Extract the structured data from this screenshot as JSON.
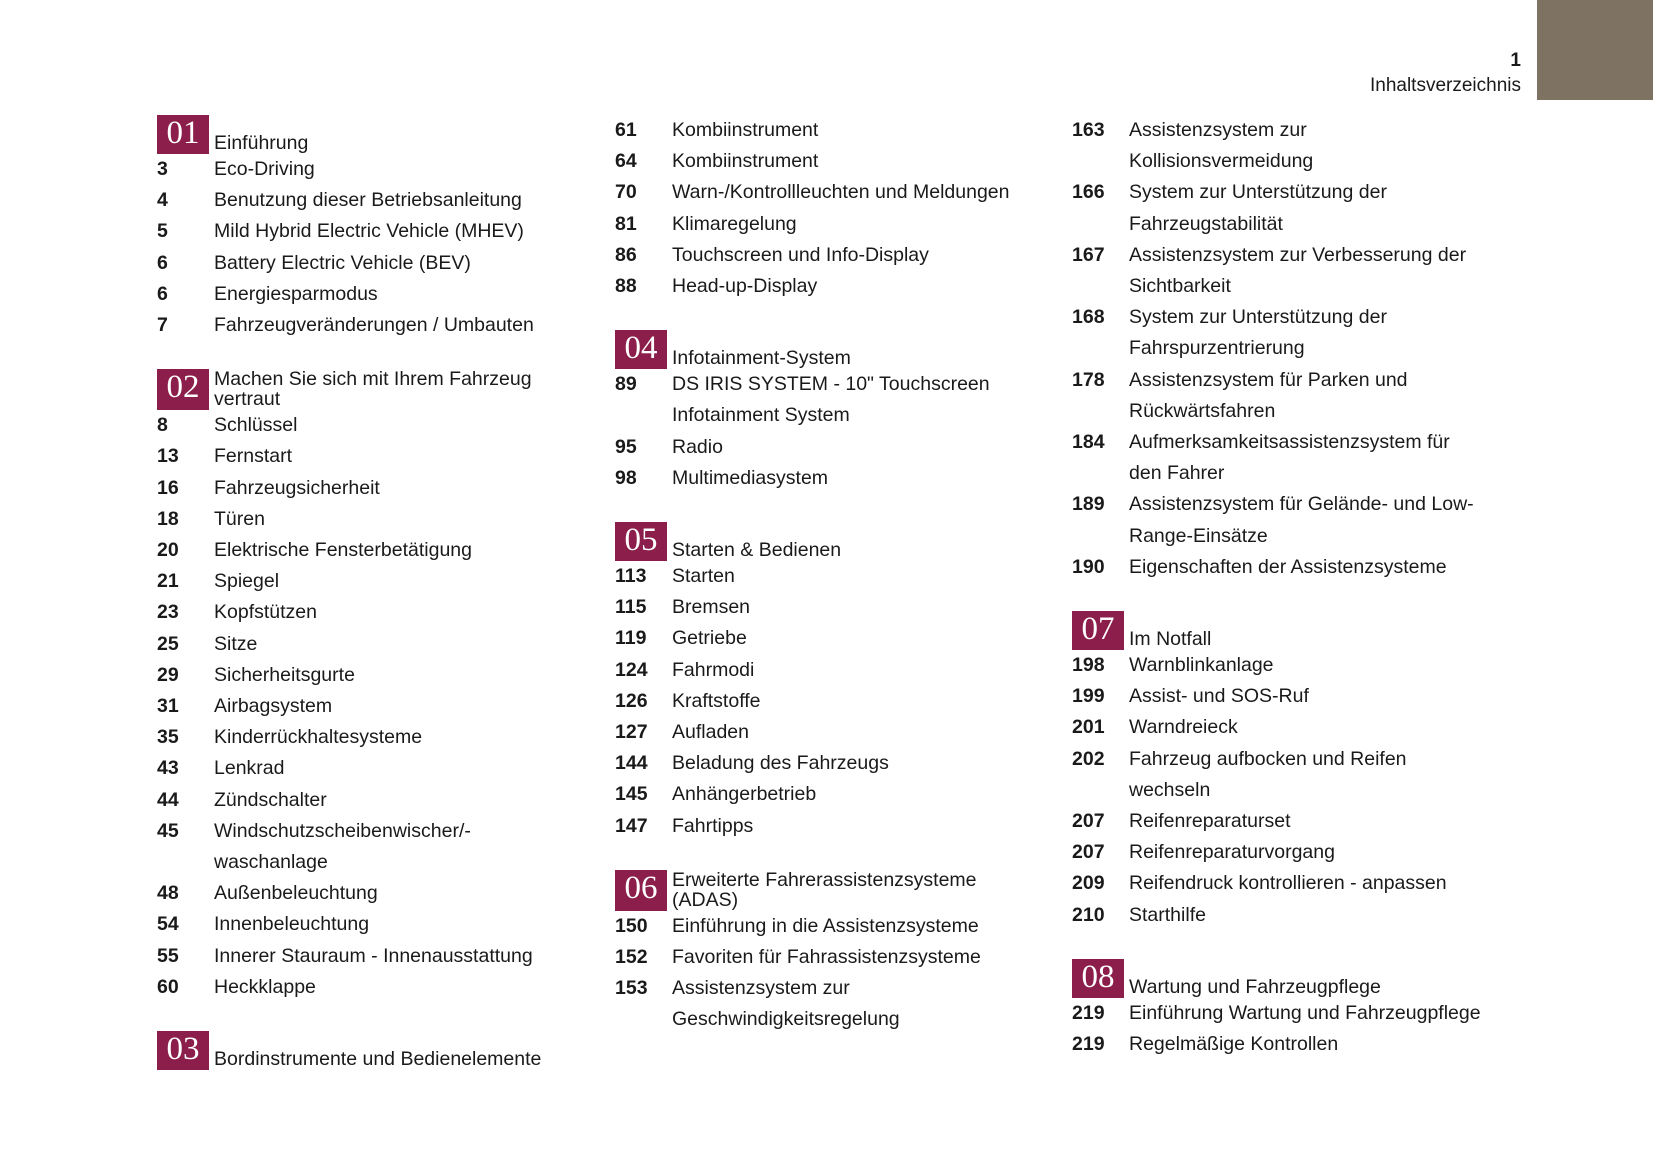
{
  "header": {
    "page_number": "1",
    "title": "Inhaltsverzeichnis"
  },
  "colors": {
    "badge": "#8b1e4a",
    "corner_tab": "#7e7263"
  },
  "columns": [
    [
      {
        "badge": "01",
        "title": "Einführung",
        "entries": [
          {
            "page": "3",
            "title": "Eco-Driving"
          },
          {
            "page": "4",
            "title": "Benutzung dieser Betriebsanleitung"
          },
          {
            "page": "5",
            "title": "Mild Hybrid Electric Vehicle (MHEV)"
          },
          {
            "page": "6",
            "title": "Battery Electric Vehicle (BEV)"
          },
          {
            "page": "6",
            "title": "Energiesparmodus"
          },
          {
            "page": "7",
            "title": "Fahrzeugveränderungen / Umbauten"
          }
        ]
      },
      {
        "badge": "02",
        "title": "Machen Sie sich mit Ihrem Fahrzeug\nvertraut",
        "entries": [
          {
            "page": "8",
            "title": "Schlüssel"
          },
          {
            "page": "13",
            "title": "Fernstart"
          },
          {
            "page": "16",
            "title": "Fahrzeugsicherheit"
          },
          {
            "page": "18",
            "title": "Türen"
          },
          {
            "page": "20",
            "title": "Elektrische Fensterbetätigung"
          },
          {
            "page": "21",
            "title": "Spiegel"
          },
          {
            "page": "23",
            "title": "Kopfstützen"
          },
          {
            "page": "25",
            "title": "Sitze"
          },
          {
            "page": "29",
            "title": "Sicherheitsgurte"
          },
          {
            "page": "31",
            "title": "Airbagsystem"
          },
          {
            "page": "35",
            "title": "Kinderrückhaltesysteme"
          },
          {
            "page": "43",
            "title": "Lenkrad"
          },
          {
            "page": "44",
            "title": "Zündschalter"
          },
          {
            "page": "45",
            "title": "Windschutzscheibenwischer/-\nwaschanlage"
          },
          {
            "page": "48",
            "title": "Außenbeleuchtung"
          },
          {
            "page": "54",
            "title": "Innenbeleuchtung"
          },
          {
            "page": "55",
            "title": "Innerer Stauraum - Innenausstattung"
          },
          {
            "page": "60",
            "title": "Heckklappe"
          }
        ]
      },
      {
        "badge": "03",
        "title": "Bordinstrumente und Bedienelemente",
        "entries": []
      }
    ],
    [
      {
        "badge": "",
        "title": "",
        "entries": [
          {
            "page": "61",
            "title": "Kombiinstrument"
          },
          {
            "page": "64",
            "title": "Kombiinstrument"
          },
          {
            "page": "70",
            "title": "Warn-/Kontrollleuchten und Meldungen"
          },
          {
            "page": "81",
            "title": "Klimaregelung"
          },
          {
            "page": "86",
            "title": "Touchscreen und Info-Display"
          },
          {
            "page": "88",
            "title": "Head-up-Display"
          }
        ]
      },
      {
        "badge": "04",
        "title": "Infotainment-System",
        "entries": [
          {
            "page": "89",
            "title": "DS IRIS SYSTEM - 10\" Touchscreen\nInfotainment System"
          },
          {
            "page": "95",
            "title": "Radio"
          },
          {
            "page": "98",
            "title": "Multimediasystem"
          }
        ]
      },
      {
        "badge": "05",
        "title": "Starten & Bedienen",
        "entries": [
          {
            "page": "113",
            "title": "Starten"
          },
          {
            "page": "115",
            "title": "Bremsen"
          },
          {
            "page": "119",
            "title": "Getriebe"
          },
          {
            "page": "124",
            "title": "Fahrmodi"
          },
          {
            "page": "126",
            "title": "Kraftstoffe"
          },
          {
            "page": "127",
            "title": "Aufladen"
          },
          {
            "page": "144",
            "title": "Beladung des Fahrzeugs"
          },
          {
            "page": "145",
            "title": "Anhängerbetrieb"
          },
          {
            "page": "147",
            "title": "Fahrtipps"
          }
        ]
      },
      {
        "badge": "06",
        "title": "Erweiterte Fahrerassistenzsysteme\n(ADAS)",
        "entries": [
          {
            "page": "150",
            "title": "Einführung in die Assistenzsysteme"
          },
          {
            "page": "152",
            "title": "Favoriten für Fahrassistenzsysteme"
          },
          {
            "page": "153",
            "title": "Assistenzsystem zur\nGeschwindigkeitsregelung"
          }
        ]
      }
    ],
    [
      {
        "badge": "",
        "title": "",
        "entries": [
          {
            "page": "163",
            "title": "Assistenzsystem zur\nKollisionsvermeidung"
          },
          {
            "page": "166",
            "title": "System zur Unterstützung der\nFahrzeugstabilität"
          },
          {
            "page": "167",
            "title": "Assistenzsystem zur Verbesserung der\nSichtbarkeit"
          },
          {
            "page": "168",
            "title": "System zur Unterstützung der\nFahrspurzentrierung"
          },
          {
            "page": "178",
            "title": "Assistenzsystem für Parken und\nRückwärtsfahren"
          },
          {
            "page": "184",
            "title": "Aufmerksamkeitsassistenzsystem für\nden Fahrer"
          },
          {
            "page": "189",
            "title": "Assistenzsystem für Gelände- und Low-\nRange-Einsätze"
          },
          {
            "page": "190",
            "title": "Eigenschaften der Assistenzsysteme"
          }
        ]
      },
      {
        "badge": "07",
        "title": "Im Notfall",
        "entries": [
          {
            "page": "198",
            "title": "Warnblinkanlage"
          },
          {
            "page": "199",
            "title": "Assist- und SOS-Ruf"
          },
          {
            "page": "201",
            "title": "Warndreieck"
          },
          {
            "page": "202",
            "title": "Fahrzeug aufbocken und Reifen\nwechseln"
          },
          {
            "page": "207",
            "title": "Reifenreparaturset"
          },
          {
            "page": "207",
            "title": "Reifenreparaturvorgang"
          },
          {
            "page": "209",
            "title": "Reifendruck kontrollieren - anpassen"
          },
          {
            "page": "210",
            "title": "Starthilfe"
          }
        ]
      },
      {
        "badge": "08",
        "title": "Wartung und Fahrzeugpflege",
        "entries": [
          {
            "page": "219",
            "title": "Einführung Wartung und Fahrzeugpflege"
          },
          {
            "page": "219",
            "title": "Regelmäßige Kontrollen"
          }
        ]
      }
    ]
  ]
}
